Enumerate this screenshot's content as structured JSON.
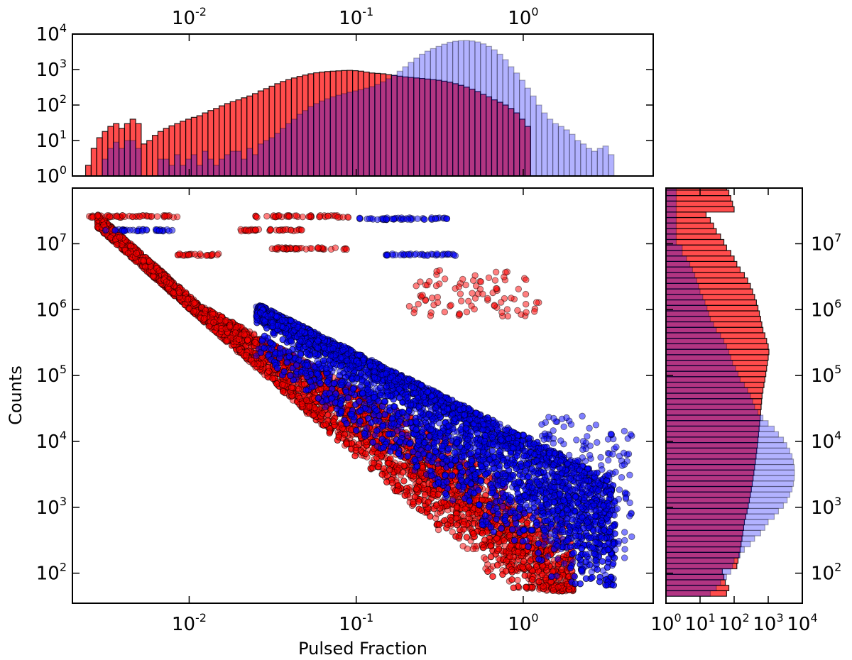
{
  "chart_data": [
    {
      "panel": "top-histogram",
      "type": "bar",
      "orientation": "vertical",
      "xscale": "log",
      "yscale": "log",
      "xlim": [
        0.002,
        6
      ],
      "ylim": [
        1,
        10000
      ],
      "xticks": [
        {
          "base": "10",
          "exp": "-2"
        },
        {
          "base": "10",
          "exp": "-1"
        },
        {
          "base": "10",
          "exp": "0"
        }
      ],
      "yticks": [
        {
          "base": "10",
          "exp": "0"
        },
        {
          "base": "10",
          "exp": "1"
        },
        {
          "base": "10",
          "exp": "2"
        },
        {
          "base": "10",
          "exp": "3"
        },
        {
          "base": "10",
          "exp": "4"
        }
      ],
      "series": [
        {
          "color": "#ff0000",
          "alpha": 0.7,
          "log_x_start": -2.62,
          "bin_width_dex": 0.0333,
          "values": [
            2,
            6,
            12,
            18,
            25,
            30,
            22,
            30,
            40,
            30,
            8,
            10,
            14,
            18,
            22,
            26,
            30,
            35,
            40,
            45,
            50,
            60,
            70,
            80,
            95,
            110,
            125,
            140,
            160,
            180,
            210,
            250,
            290,
            340,
            400,
            460,
            520,
            580,
            640,
            700,
            760,
            810,
            850,
            880,
            900,
            920,
            940,
            950,
            930,
            900,
            850,
            800,
            780,
            760,
            720,
            680,
            650,
            620,
            600,
            580,
            560,
            540,
            520,
            500,
            470,
            440,
            400,
            360,
            320,
            280,
            240,
            200,
            170,
            140,
            120,
            100,
            80,
            60,
            40,
            25
          ]
        },
        {
          "color": "#0000ff",
          "alpha": 0.3,
          "log_x_start": -2.62,
          "bin_width_dex": 0.0333,
          "values": [
            0,
            0,
            0,
            3,
            6,
            9,
            6,
            10,
            10,
            6,
            0,
            0,
            0,
            3,
            3,
            2,
            4,
            2,
            3,
            4,
            2,
            5,
            3,
            2,
            3,
            4,
            5,
            5,
            3,
            6,
            4,
            8,
            10,
            12,
            16,
            22,
            30,
            40,
            55,
            70,
            90,
            110,
            130,
            150,
            170,
            190,
            210,
            230,
            250,
            270,
            300,
            330,
            380,
            450,
            550,
            700,
            900,
            1200,
            1600,
            2100,
            2700,
            3300,
            3900,
            4500,
            5200,
            5900,
            6300,
            6500,
            6600,
            6400,
            6000,
            5300,
            4500,
            3600,
            2700,
            1900,
            1200,
            800,
            500,
            300,
            180,
            100,
            60,
            40,
            30,
            25,
            20,
            15,
            10,
            8,
            6,
            5,
            6,
            7,
            4
          ]
        }
      ]
    },
    {
      "panel": "main-scatter",
      "type": "scatter",
      "xscale": "log",
      "yscale": "log",
      "xlim": [
        0.002,
        6
      ],
      "ylim": [
        35,
        70000000
      ],
      "xlabel": "Pulsed Fraction",
      "ylabel": "Counts",
      "xticks": [
        {
          "base": "10",
          "exp": "-2"
        },
        {
          "base": "10",
          "exp": "-1"
        },
        {
          "base": "10",
          "exp": "0"
        }
      ],
      "yticks": [
        {
          "base": "10",
          "exp": "2"
        },
        {
          "base": "10",
          "exp": "3"
        },
        {
          "base": "10",
          "exp": "4"
        },
        {
          "base": "10",
          "exp": "5"
        },
        {
          "base": "10",
          "exp": "6"
        },
        {
          "base": "10",
          "exp": "7"
        }
      ],
      "series": [
        {
          "color": "#ff0000",
          "alpha": 0.5,
          "description_band": "dense anti-correlated band from (0.003, 2.5e7) to (2, 50)"
        },
        {
          "color": "#0000ff",
          "alpha": 0.5,
          "description_band": "dense band from (0.03, 1e6) to (4, 60)"
        }
      ],
      "highlights": [
        {
          "series": 0,
          "x_range": [
            0.0025,
            0.009
          ],
          "y": 26000000
        },
        {
          "series": 0,
          "x_range": [
            0.025,
            0.055
          ],
          "y": 26000000
        },
        {
          "series": 0,
          "x_range": [
            0.06,
            0.09
          ],
          "y": 26000000
        },
        {
          "series": 1,
          "x_range": [
            0.1,
            0.35
          ],
          "y": 24000000
        },
        {
          "series": 1,
          "x_range": [
            0.003,
            0.008
          ],
          "y": 16000000
        },
        {
          "series": 0,
          "x_range": [
            0.02,
            0.05
          ],
          "y": 16000000
        },
        {
          "series": 0,
          "x_range": [
            0.03,
            0.09
          ],
          "y": 8500000
        },
        {
          "series": 1,
          "x_range": [
            0.15,
            0.4
          ],
          "y": 6800000
        },
        {
          "series": 0,
          "x_range": [
            0.008,
            0.015
          ],
          "y": 6800000
        }
      ]
    },
    {
      "panel": "right-histogram",
      "type": "bar",
      "orientation": "horizontal",
      "xscale": "log",
      "yscale": "log",
      "xlim": [
        1,
        10000
      ],
      "ylim": [
        35,
        70000000
      ],
      "xticks": [
        {
          "base": "10",
          "exp": "0"
        },
        {
          "base": "10",
          "exp": "1"
        },
        {
          "base": "10",
          "exp": "2"
        },
        {
          "base": "10",
          "exp": "3"
        },
        {
          "base": "10",
          "exp": "4"
        }
      ],
      "yticks": [
        {
          "base": "10",
          "exp": "2"
        },
        {
          "base": "10",
          "exp": "3"
        },
        {
          "base": "10",
          "exp": "4"
        },
        {
          "base": "10",
          "exp": "5"
        },
        {
          "base": "10",
          "exp": "6"
        },
        {
          "base": "10",
          "exp": "7"
        }
      ],
      "series": [
        {
          "color": "#ff0000",
          "alpha": 0.7,
          "log_y_start": 1.65,
          "bin_width_dex": 0.0833,
          "values": [
            60,
            70,
            55,
            50,
            45,
            120,
            130,
            140,
            150,
            160,
            170,
            180,
            190,
            200,
            220,
            240,
            260,
            280,
            300,
            320,
            340,
            360,
            380,
            400,
            420,
            440,
            460,
            480,
            500,
            520,
            540,
            560,
            580,
            600,
            620,
            640,
            660,
            700,
            750,
            800,
            850,
            900,
            950,
            1000,
            1050,
            1000,
            900,
            800,
            700,
            650,
            600,
            550,
            500,
            450,
            400,
            350,
            300,
            250,
            200,
            150,
            120,
            100,
            80,
            60,
            50,
            40,
            30,
            25,
            20,
            15,
            100,
            90,
            80,
            70,
            60,
            50,
            40,
            200,
            220
          ]
        },
        {
          "color": "#0000ff",
          "alpha": 0.3,
          "log_y_start": 1.65,
          "bin_width_dex": 0.0833,
          "values": [
            20,
            30,
            40,
            60,
            80,
            90,
            100,
            150,
            200,
            300,
            400,
            600,
            800,
            1000,
            1500,
            2000,
            2800,
            3600,
            4300,
            5000,
            5500,
            5800,
            5900,
            5800,
            5500,
            5000,
            4300,
            3500,
            2800,
            2000,
            1500,
            1000,
            700,
            500,
            400,
            350,
            300,
            250,
            200,
            150,
            130,
            110,
            90,
            80,
            70,
            60,
            50,
            40,
            30,
            25,
            20,
            18,
            16,
            14,
            12,
            10,
            9,
            8,
            7,
            6,
            5,
            4,
            3,
            3,
            2,
            2,
            2,
            2,
            2,
            2,
            2,
            2,
            2,
            2,
            2,
            2,
            2,
            2,
            2
          ]
        }
      ]
    }
  ]
}
